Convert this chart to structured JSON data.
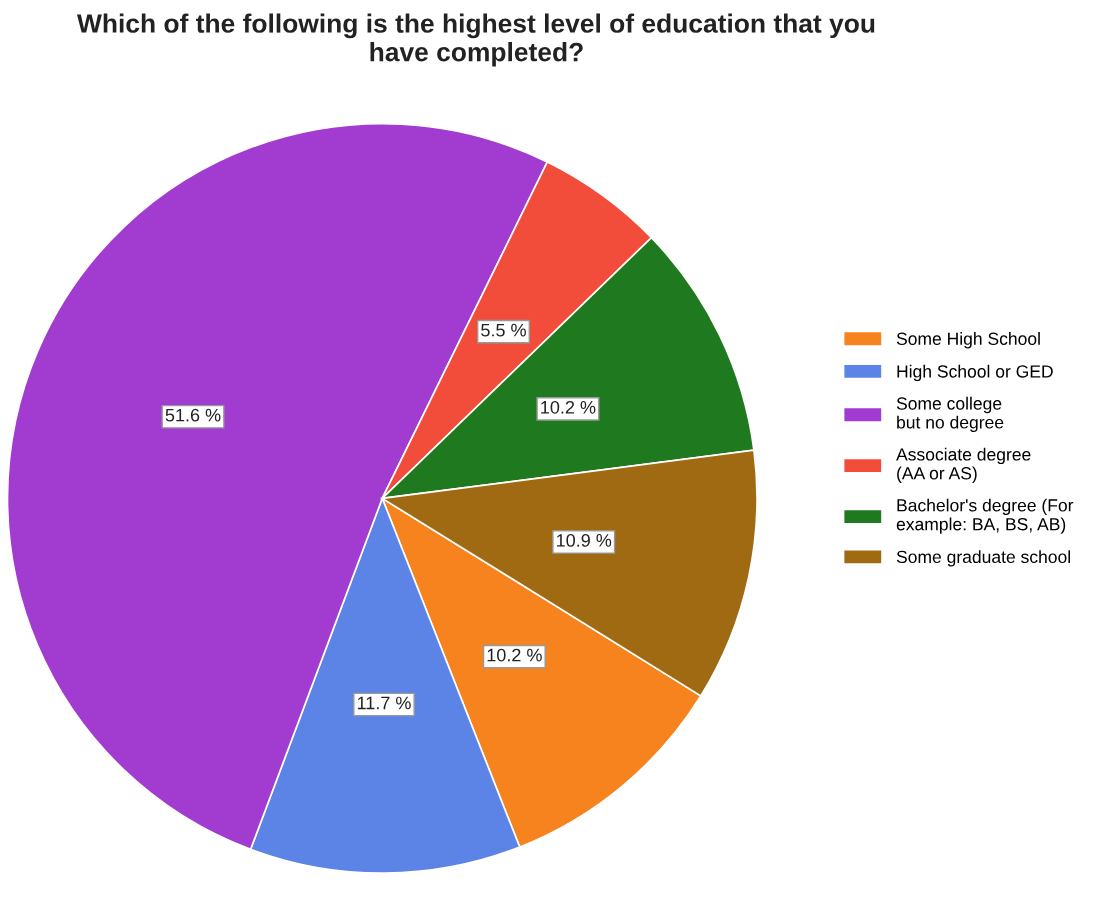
{
  "chart_data": {
    "type": "pie",
    "title": "Which of the following is the highest level of education that you\nhave completed?",
    "categories": [
      "Some High School",
      "High School or GED",
      "Some college\nbut no degree",
      "Associate degree\n(AA or AS)",
      "Bachelor's degree (For\nexample: BA, BS, AB)",
      "Some graduate school"
    ],
    "values": [
      10.2,
      11.7,
      51.6,
      5.5,
      10.2,
      10.9
    ],
    "value_labels": [
      "10.2 %",
      "11.7 %",
      "51.6 %",
      "5.5 %",
      "10.2 %",
      "10.9 %"
    ],
    "colors": [
      "#f7831e",
      "#5b84e6",
      "#a23bcf",
      "#f24c3b",
      "#1f7a1f",
      "#a06a12"
    ],
    "legend": "right"
  }
}
